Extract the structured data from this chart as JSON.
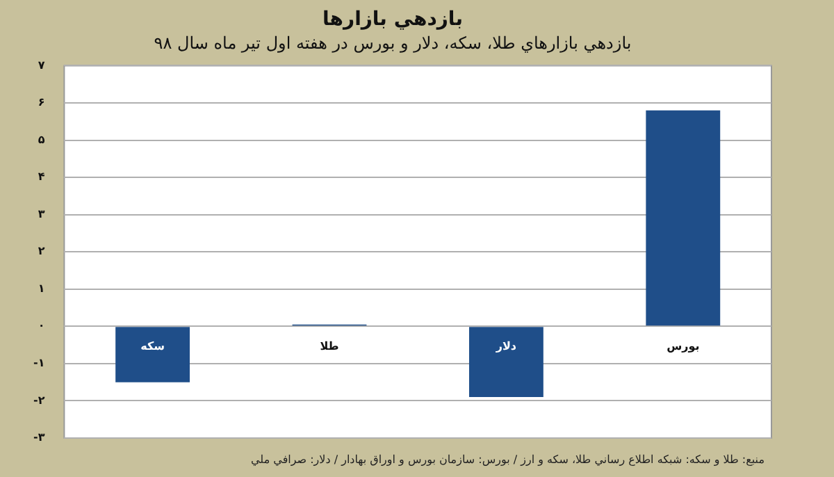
{
  "chart_data": {
    "type": "bar",
    "title": "بازدهي بازارها",
    "subtitle": "بازدهي بازارهاي طلا، سكه، دلار و بورس در هفته اول تير ماه سال ۹۸",
    "categories": [
      "سكه",
      "طلا",
      "دلار",
      "بورس"
    ],
    "values": [
      -1.5,
      0.05,
      -1.9,
      5.8
    ],
    "color": "#1f4e89",
    "ylim": [
      -3,
      7
    ],
    "yticks": [
      {
        "value": -3,
        "label": "-۳"
      },
      {
        "value": -2,
        "label": "-۲"
      },
      {
        "value": -1,
        "label": "-۱"
      },
      {
        "value": 0,
        "label": "۰"
      },
      {
        "value": 1,
        "label": "۱"
      },
      {
        "value": 2,
        "label": "۲"
      },
      {
        "value": 3,
        "label": "۳"
      },
      {
        "value": 4,
        "label": "۴"
      },
      {
        "value": 5,
        "label": "۵"
      },
      {
        "value": 6,
        "label": "۶"
      },
      {
        "value": 7,
        "label": "۷"
      }
    ],
    "grid": "y",
    "legend": false,
    "annotations": [
      "منبع: طلا و سكه: شبكه اطلاع رساني طلا، سكه و ارز / بورس: سازمان بورس و اوراق بهادار / دلار: صرافي ملي"
    ]
  }
}
